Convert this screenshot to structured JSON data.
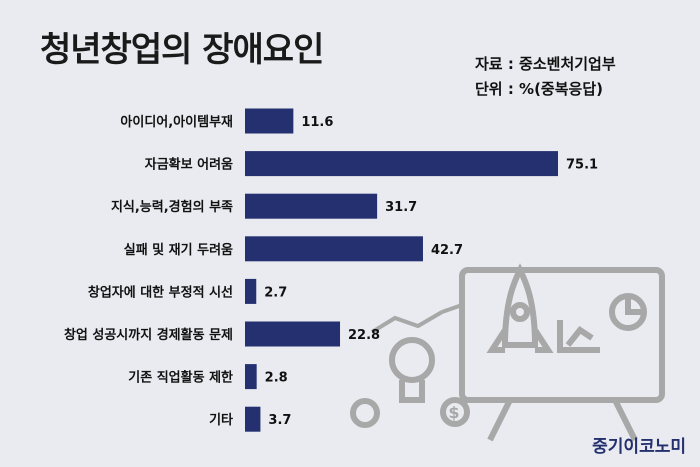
{
  "header": {
    "title": "청년창업의 장애요인",
    "source_line": "자료 : 중소벤처기업부",
    "unit_line": "단위 : %(중복응답)"
  },
  "watermark": "중기이코노미",
  "colors": {
    "bar": "#243070",
    "background": "#e9ebf0",
    "illustration": "#a8a8a8"
  },
  "chart_data": {
    "type": "bar",
    "orientation": "horizontal",
    "title": "청년창업의 장애요인",
    "categories": [
      "아이디어,아이템부재",
      "자금확보 어려움",
      "지식,능력,경험의 부족",
      "실패 및 재기 두려움",
      "창업자에 대한 부정적 시선",
      "창업 성공시까지 경제활동 문제",
      "기존 직업활동 제한",
      "기타"
    ],
    "values": [
      11.6,
      75.1,
      31.7,
      42.7,
      2.7,
      22.8,
      2.8,
      3.7
    ],
    "xlim": [
      0,
      75.1
    ],
    "grid": false,
    "legend": "none"
  }
}
